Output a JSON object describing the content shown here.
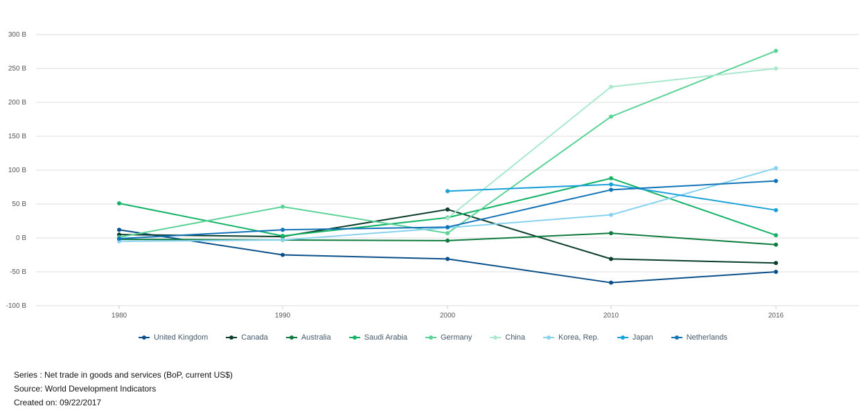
{
  "chart_data": {
    "type": "line",
    "x": [
      "1980",
      "1990",
      "2000",
      "2010",
      "2016"
    ],
    "ylim": [
      -100,
      300
    ],
    "yticks": [
      -100,
      -50,
      0,
      50,
      100,
      150,
      200,
      250,
      300
    ],
    "ytick_labels": [
      "-100 B",
      "-50 B",
      "0 B",
      "50 B",
      "100 B",
      "150 B",
      "200 B",
      "250 B",
      "300 B"
    ],
    "grid": true,
    "legend_position": "bottom",
    "series": [
      {
        "name": "United Kingdom",
        "color": "#0b4f8a",
        "values": [
          12,
          -25,
          -31,
          -66,
          -50
        ]
      },
      {
        "name": "Canada",
        "color": "#0a3d2a",
        "values": [
          5,
          2,
          42,
          -31,
          -37
        ]
      },
      {
        "name": "Australia",
        "color": "#0d7a3e",
        "values": [
          -2,
          -3,
          -4,
          7,
          -10
        ]
      },
      {
        "name": "Saudi Arabia",
        "color": "#13b366",
        "values": [
          51,
          3,
          30,
          88,
          4
        ]
      },
      {
        "name": "Germany",
        "color": "#5bd397",
        "values": [
          1,
          46,
          7,
          179,
          276
        ]
      },
      {
        "name": "China",
        "color": "#a9e8cd",
        "values": [
          null,
          null,
          29,
          223,
          250
        ]
      },
      {
        "name": "Korea, Rep.",
        "color": "#86d2ef",
        "values": [
          -5,
          -3,
          15,
          34,
          103
        ]
      },
      {
        "name": "Japan",
        "color": "#1aa0d8",
        "values": [
          null,
          null,
          69,
          79,
          41
        ]
      },
      {
        "name": "Netherlands",
        "color": "#1172b8",
        "values": [
          -1,
          12,
          16,
          71,
          84
        ]
      }
    ]
  },
  "footer": {
    "series": "Series : Net trade in goods and services (BoP, current US$)",
    "source": "Source: World Development Indicators",
    "created": "Created on: 09/22/2017"
  }
}
